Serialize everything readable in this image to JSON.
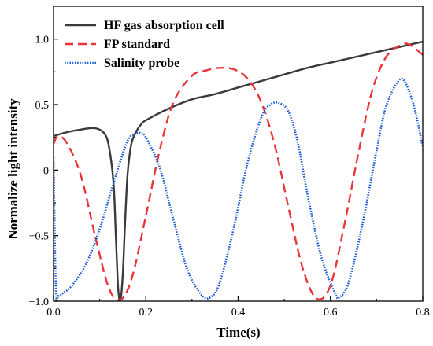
{
  "chart_data": {
    "type": "line",
    "title": "",
    "xlabel": "Time(s)",
    "ylabel": "Normalize light intensity",
    "xlim": [
      0.0,
      0.8
    ],
    "ylim": [
      -1.0,
      1.25
    ],
    "xticks": [
      0.0,
      0.2,
      0.4,
      0.6,
      0.8
    ],
    "xtick_labels": [
      "0.0",
      "0.2",
      "0.4",
      "0.6",
      "0.8"
    ],
    "yticks": [
      -1.0,
      -0.5,
      0.0,
      0.5,
      1.0
    ],
    "ytick_labels": [
      "−1.0",
      "−0.5",
      "0",
      "0.5",
      "1.0"
    ],
    "grid": false,
    "legend_position": "top-left",
    "series": [
      {
        "name": "HF gas absorption cell",
        "color": "#3a3a3a",
        "style": "solid",
        "x": [
          0.0,
          0.03,
          0.06,
          0.09,
          0.11,
          0.12,
          0.13,
          0.135,
          0.14,
          0.145,
          0.15,
          0.155,
          0.16,
          0.165,
          0.17,
          0.18,
          0.19,
          0.2,
          0.25,
          0.3,
          0.35,
          0.4,
          0.45,
          0.5,
          0.55,
          0.6,
          0.65,
          0.7,
          0.75,
          0.8
        ],
        "y": [
          0.26,
          0.29,
          0.31,
          0.32,
          0.28,
          0.18,
          -0.1,
          -0.5,
          -0.9,
          -0.99,
          -0.8,
          -0.4,
          -0.05,
          0.12,
          0.22,
          0.3,
          0.35,
          0.38,
          0.47,
          0.54,
          0.58,
          0.63,
          0.68,
          0.73,
          0.78,
          0.82,
          0.86,
          0.9,
          0.94,
          0.98
        ]
      },
      {
        "name": "FP standard",
        "color": "#e8363a",
        "style": "dashed",
        "x": [
          0.0,
          0.01,
          0.03,
          0.06,
          0.09,
          0.12,
          0.145,
          0.17,
          0.2,
          0.23,
          0.26,
          0.3,
          0.33,
          0.36,
          0.39,
          0.42,
          0.45,
          0.48,
          0.51,
          0.54,
          0.57,
          0.6,
          0.63,
          0.66,
          0.69,
          0.72,
          0.75,
          0.77,
          0.8
        ],
        "y": [
          0.2,
          0.26,
          0.2,
          -0.05,
          -0.5,
          -0.9,
          -0.99,
          -0.82,
          -0.35,
          0.15,
          0.52,
          0.72,
          0.76,
          0.78,
          0.77,
          0.7,
          0.52,
          0.18,
          -0.3,
          -0.75,
          -0.98,
          -0.88,
          -0.42,
          0.12,
          0.6,
          0.86,
          0.95,
          0.96,
          0.88
        ]
      },
      {
        "name": "Salinity probe",
        "color": "#1f5fd6",
        "style": "dotted",
        "x": [
          0.0,
          0.005,
          0.01,
          0.02,
          0.04,
          0.07,
          0.1,
          0.13,
          0.16,
          0.18,
          0.19,
          0.2,
          0.23,
          0.26,
          0.29,
          0.32,
          0.34,
          0.36,
          0.39,
          0.42,
          0.45,
          0.47,
          0.49,
          0.51,
          0.53,
          0.55,
          0.58,
          0.61,
          0.62,
          0.64,
          0.67,
          0.7,
          0.72,
          0.745,
          0.76,
          0.78,
          0.8
        ],
        "y": [
          0.1,
          -0.9,
          -0.96,
          -0.94,
          -0.88,
          -0.72,
          -0.45,
          -0.1,
          0.22,
          0.28,
          0.28,
          0.25,
          0.02,
          -0.38,
          -0.76,
          -0.95,
          -0.97,
          -0.86,
          -0.45,
          0.05,
          0.4,
          0.5,
          0.51,
          0.44,
          0.2,
          -0.18,
          -0.66,
          -0.94,
          -0.97,
          -0.85,
          -0.4,
          0.15,
          0.48,
          0.67,
          0.68,
          0.5,
          0.18
        ]
      }
    ]
  }
}
